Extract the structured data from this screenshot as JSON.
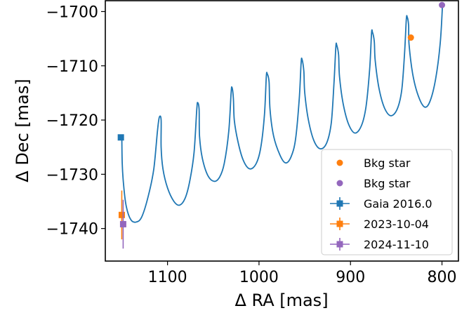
{
  "chart_data": {
    "type": "scatter",
    "xlabel": "Δ RA [mas]",
    "ylabel": "Δ Dec [mas]",
    "xlim": [
      1168,
      782
    ],
    "ylim": [
      -1746,
      -1698
    ],
    "x_inverted": true,
    "xticks": [
      {
        "value": 1100,
        "label": "1100"
      },
      {
        "value": 1000,
        "label": "1000"
      },
      {
        "value": 900,
        "label": "900"
      },
      {
        "value": 800,
        "label": "800"
      }
    ],
    "yticks": [
      {
        "value": -1700,
        "label": "−1700"
      },
      {
        "value": -1710,
        "label": "−1710"
      },
      {
        "value": -1720,
        "label": "−1720"
      },
      {
        "value": -1730,
        "label": "−1730"
      },
      {
        "value": -1740,
        "label": "−1740"
      }
    ],
    "grid": false,
    "legend_position": "lower-right",
    "track": {
      "color": "#1f77b4",
      "points": [
        [
          1150,
          -1723
        ],
        [
          1149.5,
          -1728
        ],
        [
          1148,
          -1732
        ],
        [
          1145,
          -1736
        ],
        [
          1140,
          -1738.4
        ],
        [
          1134,
          -1738.8
        ],
        [
          1128,
          -1737.8
        ],
        [
          1121,
          -1734
        ],
        [
          1115,
          -1729
        ],
        [
          1111,
          -1722
        ],
        [
          1109,
          -1719.5
        ],
        [
          1107,
          -1720
        ],
        [
          1107,
          -1725
        ],
        [
          1105,
          -1729
        ],
        [
          1100,
          -1732.5
        ],
        [
          1093,
          -1735
        ],
        [
          1087,
          -1735.7
        ],
        [
          1081,
          -1734.5
        ],
        [
          1076,
          -1731.5
        ],
        [
          1071,
          -1726
        ],
        [
          1068,
          -1718
        ],
        [
          1067,
          -1716.8
        ],
        [
          1065.5,
          -1718
        ],
        [
          1065,
          -1723
        ],
        [
          1062,
          -1727
        ],
        [
          1056,
          -1730.2
        ],
        [
          1049,
          -1731.3
        ],
        [
          1043,
          -1730.5
        ],
        [
          1038,
          -1728
        ],
        [
          1033,
          -1722
        ],
        [
          1030.5,
          -1715
        ],
        [
          1029.5,
          -1714
        ],
        [
          1028,
          -1716
        ],
        [
          1027,
          -1720
        ],
        [
          1023,
          -1724
        ],
        [
          1017,
          -1727.5
        ],
        [
          1010,
          -1729
        ],
        [
          1003,
          -1728
        ],
        [
          998,
          -1725
        ],
        [
          994,
          -1719
        ],
        [
          992,
          -1712
        ],
        [
          991,
          -1711.5
        ],
        [
          989,
          -1713
        ],
        [
          988,
          -1718
        ],
        [
          984,
          -1723
        ],
        [
          977,
          -1726.5
        ],
        [
          971,
          -1727.9
        ],
        [
          965,
          -1726.8
        ],
        [
          960,
          -1723.5
        ],
        [
          956,
          -1716
        ],
        [
          954,
          -1709.5
        ],
        [
          953,
          -1708.8
        ],
        [
          951,
          -1711
        ],
        [
          950,
          -1715
        ],
        [
          946,
          -1720
        ],
        [
          940,
          -1723.8
        ],
        [
          933,
          -1725.3
        ],
        [
          926,
          -1724.2
        ],
        [
          921,
          -1720.5
        ],
        [
          918,
          -1713
        ],
        [
          916,
          -1706.5
        ],
        [
          915,
          -1706.2
        ],
        [
          913,
          -1708
        ],
        [
          912,
          -1712
        ],
        [
          908,
          -1717
        ],
        [
          902,
          -1720.8
        ],
        [
          895,
          -1722.4
        ],
        [
          888,
          -1721
        ],
        [
          883,
          -1717.5
        ],
        [
          879,
          -1710.5
        ],
        [
          877,
          -1704
        ],
        [
          876,
          -1703.8
        ],
        [
          874,
          -1705.5
        ],
        [
          873,
          -1709
        ],
        [
          869,
          -1714
        ],
        [
          863,
          -1717.7
        ],
        [
          856,
          -1719.2
        ],
        [
          849,
          -1718
        ],
        [
          844,
          -1714.5
        ],
        [
          841,
          -1708
        ],
        [
          839,
          -1701.5
        ],
        [
          838,
          -1701
        ],
        [
          836.5,
          -1702.5
        ],
        [
          836,
          -1706
        ],
        [
          832,
          -1711.5
        ],
        [
          826,
          -1715.5
        ],
        [
          819,
          -1717.6
        ],
        [
          813,
          -1716.5
        ],
        [
          807,
          -1712.5
        ],
        [
          802,
          -1706
        ],
        [
          799.5,
          -1699
        ]
      ]
    },
    "scatter_points": [
      {
        "name": "Bkg star",
        "color": "#ff7f0e",
        "marker": "circle",
        "x": 834,
        "y": -1704.8
      },
      {
        "name": "Bkg star",
        "color": "#9467bd",
        "marker": "circle",
        "x": 800,
        "y": -1698.8
      }
    ],
    "errorbar_points": [
      {
        "name": "Gaia 2016.0",
        "color": "#1f77b4",
        "marker": "square",
        "x": 1151,
        "y": -1723.2,
        "xerr": 0.5,
        "yerr": 0.2
      },
      {
        "name": "2023-10-04",
        "color": "#ff7f0e",
        "marker": "square",
        "x": 1150,
        "y": -1737.5,
        "xerr": 1.5,
        "yerr": 4.5
      },
      {
        "name": "2024-11-10",
        "color": "#9467bd",
        "marker": "square",
        "x": 1148.5,
        "y": -1739.2,
        "xerr": 1.5,
        "yerr": 4.5
      }
    ],
    "legend": [
      {
        "label": "Bkg star",
        "color": "#ff7f0e",
        "marker": "circle"
      },
      {
        "label": "Bkg star",
        "color": "#9467bd",
        "marker": "circle"
      },
      {
        "label": "Gaia 2016.0",
        "color": "#1f77b4",
        "marker": "errorbar-square"
      },
      {
        "label": "2023-10-04",
        "color": "#ff7f0e",
        "marker": "errorbar-square"
      },
      {
        "label": "2024-11-10",
        "color": "#9467bd",
        "marker": "errorbar-square"
      }
    ]
  }
}
